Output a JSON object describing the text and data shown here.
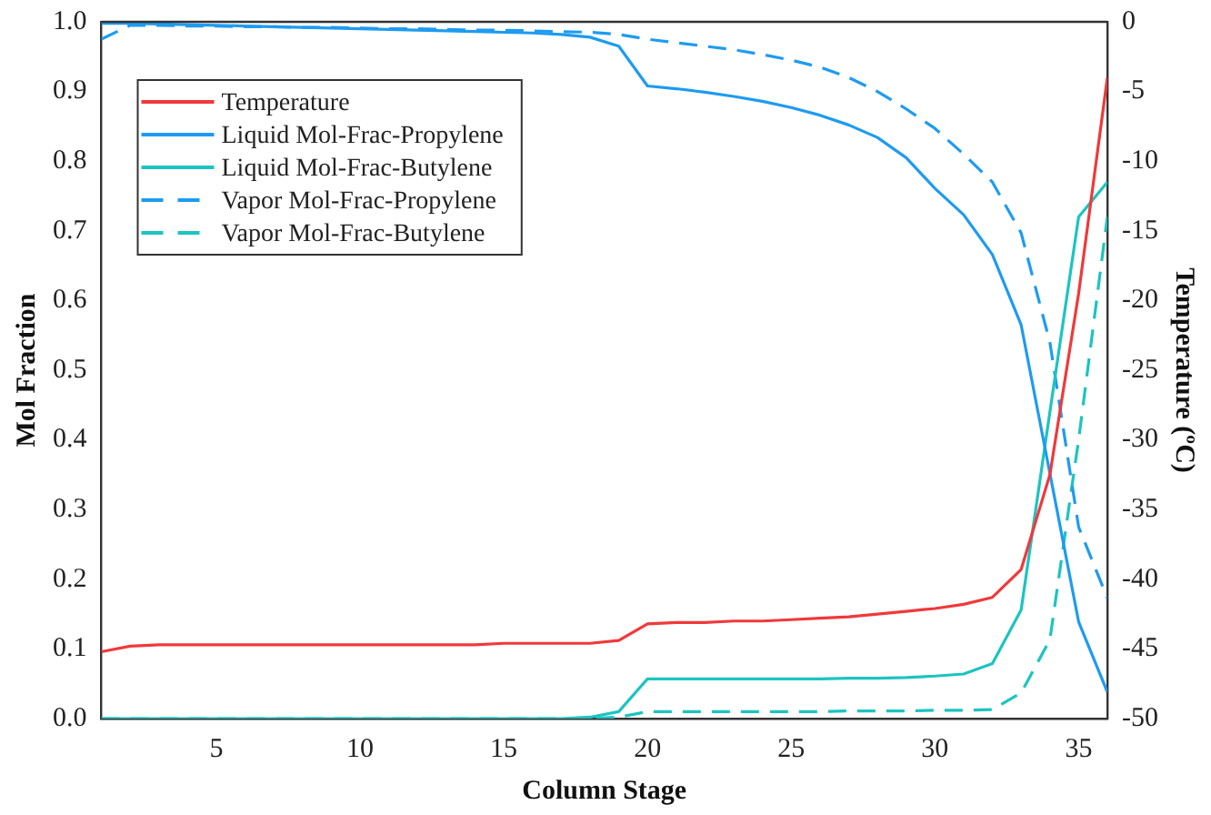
{
  "chart_data": {
    "type": "line",
    "xlabel": "Column Stage",
    "ylabel": "Mol Fraction",
    "y2label": "Temperature (ºC)",
    "x": [
      1,
      2,
      3,
      4,
      5,
      6,
      7,
      8,
      9,
      10,
      11,
      12,
      13,
      14,
      15,
      16,
      17,
      18,
      19,
      20,
      21,
      22,
      23,
      24,
      25,
      26,
      27,
      28,
      29,
      30,
      31,
      32,
      33,
      34,
      35,
      36
    ],
    "series": [
      {
        "name": "Temperature",
        "color": "#f0393b",
        "axis": "y2",
        "line_style": "solid",
        "values": [
          -45.2,
          -44.8,
          -44.7,
          -44.7,
          -44.7,
          -44.7,
          -44.7,
          -44.7,
          -44.7,
          -44.7,
          -44.7,
          -44.7,
          -44.7,
          -44.7,
          -44.6,
          -44.6,
          -44.6,
          -44.6,
          -44.4,
          -43.2,
          -43.1,
          -43.1,
          -43.0,
          -43.0,
          -42.9,
          -42.8,
          -42.7,
          -42.5,
          -42.3,
          -42.1,
          -41.8,
          -41.3,
          -39.3,
          -32.5,
          -19.5,
          -4.0
        ]
      },
      {
        "name": "Liquid Mol-Frac-Propylene",
        "color": "#1e9bf0",
        "line_style": "solid",
        "values": [
          0.998,
          0.998,
          0.997,
          0.996,
          0.995,
          0.994,
          0.993,
          0.992,
          0.991,
          0.99,
          0.989,
          0.988,
          0.987,
          0.986,
          0.985,
          0.984,
          0.982,
          0.978,
          0.965,
          0.908,
          0.904,
          0.899,
          0.893,
          0.886,
          0.877,
          0.866,
          0.852,
          0.834,
          0.805,
          0.761,
          0.723,
          0.666,
          0.565,
          0.352,
          0.139,
          0.038
        ]
      },
      {
        "name": "Liquid Mol-Frac-Butylene",
        "color": "#1cc4c0",
        "line_style": "solid",
        "values": [
          0,
          0,
          0,
          0,
          0,
          0,
          0,
          0,
          0,
          0,
          0,
          0,
          0,
          0,
          0,
          0,
          0,
          0.002,
          0.01,
          0.057,
          0.057,
          0.057,
          0.057,
          0.057,
          0.057,
          0.057,
          0.058,
          0.058,
          0.059,
          0.061,
          0.064,
          0.079,
          0.156,
          0.44,
          0.72,
          0.77
        ]
      },
      {
        "name": "Vapor Mol-Frac-Propylene",
        "color": "#1e9bf0",
        "line_style": "dashed",
        "values": [
          0.975,
          0.995,
          0.995,
          0.994,
          0.994,
          0.993,
          0.993,
          0.992,
          0.992,
          0.991,
          0.99,
          0.99,
          0.989,
          0.988,
          0.988,
          0.987,
          0.986,
          0.985,
          0.982,
          0.975,
          0.97,
          0.965,
          0.96,
          0.953,
          0.945,
          0.935,
          0.92,
          0.9,
          0.875,
          0.847,
          0.81,
          0.77,
          0.697,
          0.54,
          0.275,
          0.173
        ]
      },
      {
        "name": "Vapor Mol-Frac-Butylene",
        "color": "#1cc4c0",
        "line_style": "dashed",
        "values": [
          0,
          0,
          0,
          0,
          0,
          0,
          0,
          0,
          0,
          0,
          0,
          0,
          0,
          0,
          0,
          0,
          0,
          0,
          0.002,
          0.01,
          0.01,
          0.01,
          0.01,
          0.01,
          0.01,
          0.01,
          0.011,
          0.011,
          0.011,
          0.012,
          0.012,
          0.013,
          0.037,
          0.113,
          0.4,
          0.72
        ]
      }
    ],
    "xlim": [
      1,
      36
    ],
    "xticks": [
      5,
      10,
      15,
      20,
      25,
      30,
      35
    ],
    "ylim": [
      0,
      1
    ],
    "yticks": [
      {
        "value": 0,
        "label": "0.0"
      },
      0.1,
      0.2,
      0.3,
      0.4,
      0.5,
      0.6,
      0.7,
      0.8,
      0.9,
      {
        "value": 1,
        "label": "1.0"
      }
    ],
    "y2lim": [
      -50,
      0
    ],
    "y2ticks": [
      -50,
      -45,
      -40,
      -35,
      -30,
      -25,
      -20,
      -15,
      -10,
      -5,
      0
    ],
    "grid": false,
    "legend": "top left",
    "marker": "none"
  }
}
